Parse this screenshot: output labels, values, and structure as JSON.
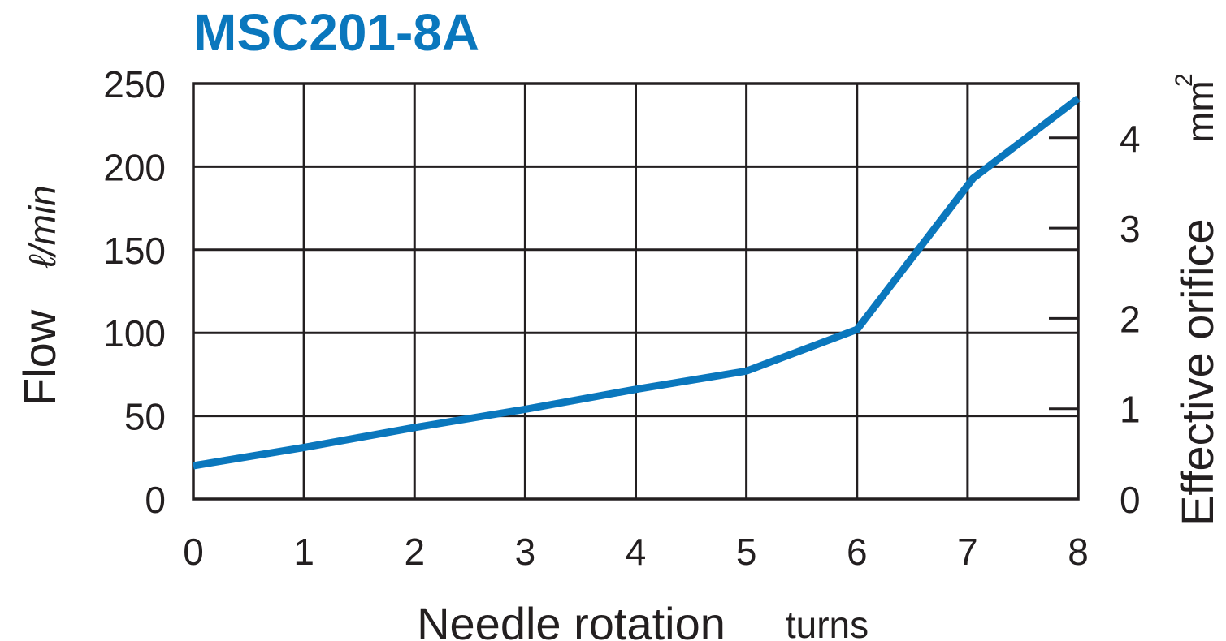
{
  "colors": {
    "series": "#0a77bd",
    "title": "#0a77bd",
    "grid": "#231f20",
    "text": "#231f20"
  },
  "chart_data": {
    "type": "line",
    "title": "MSC201-8A",
    "xlabel": "Needle rotation",
    "xunit": "turns",
    "ylabel": "Flow",
    "yunit": "ℓ/min",
    "y2label": "Effective orifice",
    "y2unit": "mm",
    "y2unit_sup": "2",
    "xlim": [
      0,
      8
    ],
    "ylim": [
      0,
      250
    ],
    "y2lim": [
      0,
      4.6
    ],
    "xticks": [
      "0",
      "1",
      "2",
      "3",
      "4",
      "5",
      "6",
      "7",
      "8"
    ],
    "yticks": [
      "0",
      "50",
      "100",
      "150",
      "200",
      "250"
    ],
    "y2ticks": [
      "0",
      "1",
      "2",
      "3",
      "4"
    ],
    "grid": true,
    "series": [
      {
        "x": [
          0,
          1,
          2,
          3,
          4,
          5,
          6,
          7.05,
          8
        ],
        "values": [
          20,
          31,
          43,
          54,
          66,
          77,
          102,
          193,
          241
        ]
      }
    ]
  }
}
